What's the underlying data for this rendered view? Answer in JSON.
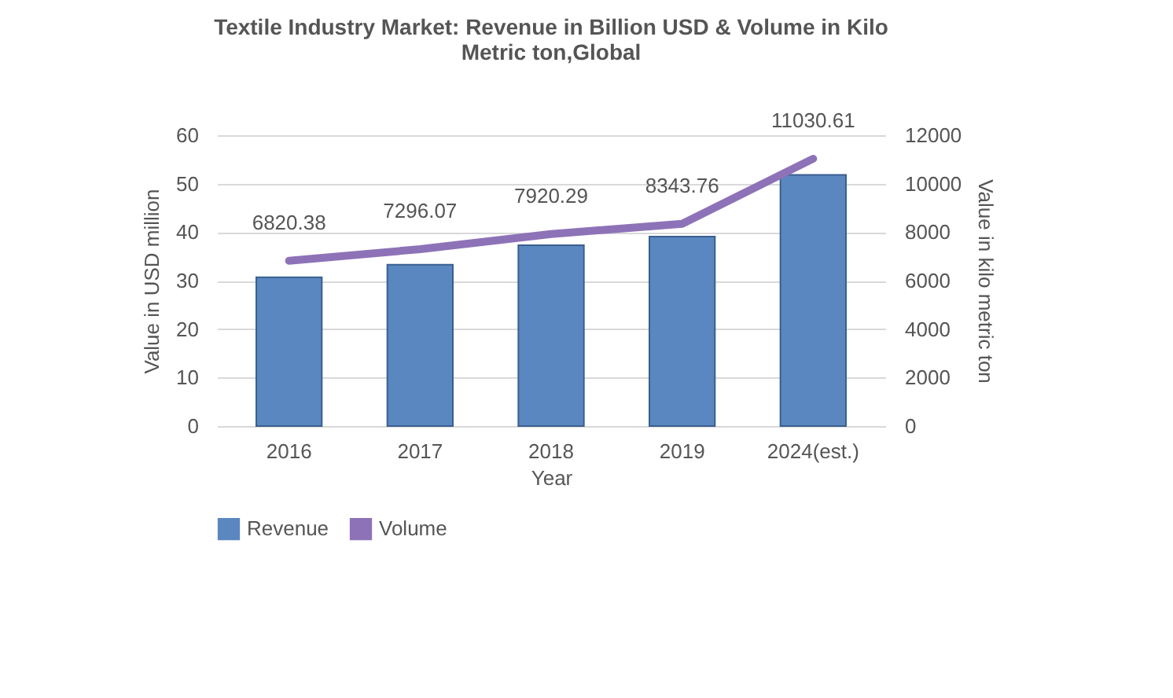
{
  "chart_data": {
    "type": "bar",
    "title": [
      "Textile Industry Market: Revenue in Billion USD & Volume in  Kilo",
      "Metric ton,Global"
    ],
    "xlabel": "Year",
    "ylabel": "Value in USD million",
    "y2label": "Value in kilo metric ton",
    "categories": [
      "2016",
      "2017",
      "2018",
      "2019",
      "2024(est.)"
    ],
    "series": [
      {
        "name": "Revenue",
        "color": "#5b87c0",
        "values": [
          30.7,
          33.3,
          37.3,
          39.1,
          51.8
        ]
      },
      {
        "name": "Volume",
        "type": "line",
        "axis": "y2",
        "color": "#8e72b8",
        "values": [
          6820.38,
          7296.07,
          7920.29,
          8343.76,
          11030.61
        ],
        "value_labels": [
          "6820.38",
          "7296.07",
          "7920.29",
          "8343.76",
          "11030.61"
        ]
      }
    ],
    "ylim": [
      0,
      60
    ],
    "yticks": [
      0,
      10,
      20,
      30,
      40,
      50,
      60
    ],
    "y2lim": [
      0,
      12000
    ],
    "y2ticks": [
      0,
      2000,
      4000,
      6000,
      8000,
      10000,
      12000
    ],
    "grid": "y",
    "legend": "bottom",
    "marker": "none"
  }
}
